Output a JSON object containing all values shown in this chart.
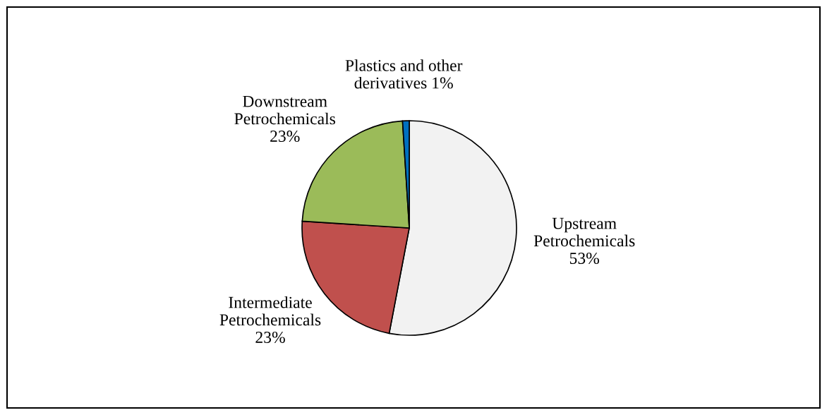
{
  "chart_data": {
    "type": "pie",
    "categories": [
      "Upstream\nPetrochemicals",
      "Intermediate\nPetrochemicals",
      "Downstream\nPetrochemicals",
      "Plastics and other\nderivatives"
    ],
    "values": [
      53,
      23,
      23,
      1
    ],
    "value_labels": [
      "53%",
      "23%",
      "23%",
      "1%"
    ],
    "colors": [
      "#f2f2f2",
      "#c0504d",
      "#9bbb59",
      "#0070c0"
    ]
  }
}
